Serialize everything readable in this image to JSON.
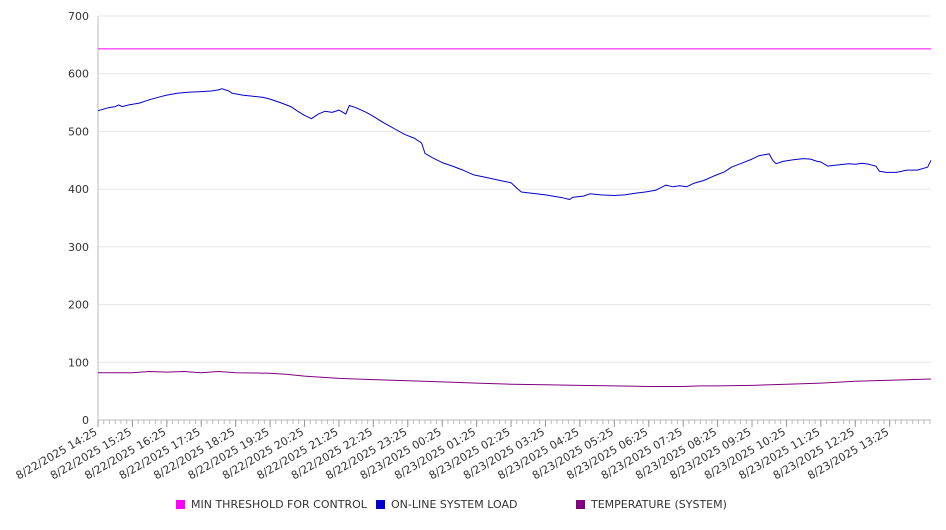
{
  "chart_data": {
    "type": "line",
    "title": "",
    "xlabel": "",
    "ylabel": "",
    "ylim": [
      0,
      700
    ],
    "yticks": [
      0,
      100,
      200,
      300,
      400,
      500,
      600,
      700
    ],
    "grid": true,
    "legend_position": "bottom",
    "x_tick_labels": [
      "8/22/2025 14:25",
      "8/22/2025 15:25",
      "8/22/2025 16:25",
      "8/22/2025 17:25",
      "8/22/2025 18:25",
      "8/22/2025 19:25",
      "8/22/2025 20:25",
      "8/22/2025 21:25",
      "8/22/2025 22:25",
      "8/22/2025 23:25",
      "8/23/2025 00:25",
      "8/23/2025 01:25",
      "8/23/2025 02:25",
      "8/23/2025 03:25",
      "8/23/2025 04:25",
      "8/23/2025 05:25",
      "8/23/2025 06:25",
      "8/23/2025 07:25",
      "8/23/2025 08:25",
      "8/23/2025 09:25",
      "8/23/2025 10:25",
      "8/23/2025 11:25",
      "8/23/2025 12:25",
      "8/23/2025 13:25"
    ],
    "x_range_hours": [
      0,
      24.2
    ],
    "series": [
      {
        "name": "MIN THRESHOLD FOR CONTROL",
        "color": "#ff00ff",
        "points": [
          [
            0,
            643
          ],
          [
            24.2,
            643
          ]
        ]
      },
      {
        "name": "ON-LINE SYSTEM LOAD",
        "color": "#0000cc",
        "points": [
          [
            0,
            536
          ],
          [
            0.3,
            541
          ],
          [
            0.5,
            543
          ],
          [
            0.6,
            546
          ],
          [
            0.7,
            543
          ],
          [
            0.9,
            546
          ],
          [
            1.2,
            549
          ],
          [
            1.5,
            555
          ],
          [
            1.8,
            560
          ],
          [
            2.0,
            563
          ],
          [
            2.3,
            566
          ],
          [
            2.6,
            568
          ],
          [
            3.0,
            569
          ],
          [
            3.3,
            570
          ],
          [
            3.5,
            572
          ],
          [
            3.6,
            574
          ],
          [
            3.8,
            570
          ],
          [
            3.9,
            566
          ],
          [
            4.2,
            563
          ],
          [
            4.5,
            561
          ],
          [
            4.8,
            559
          ],
          [
            5.0,
            556
          ],
          [
            5.3,
            550
          ],
          [
            5.6,
            543
          ],
          [
            5.8,
            535
          ],
          [
            6.0,
            528
          ],
          [
            6.2,
            522
          ],
          [
            6.4,
            530
          ],
          [
            6.6,
            535
          ],
          [
            6.8,
            533
          ],
          [
            7.0,
            537
          ],
          [
            7.2,
            530
          ],
          [
            7.3,
            545
          ],
          [
            7.5,
            541
          ],
          [
            7.8,
            533
          ],
          [
            8.0,
            526
          ],
          [
            8.3,
            515
          ],
          [
            8.6,
            505
          ],
          [
            8.9,
            495
          ],
          [
            9.2,
            488
          ],
          [
            9.4,
            480
          ],
          [
            9.5,
            462
          ],
          [
            9.7,
            455
          ],
          [
            10.0,
            446
          ],
          [
            10.3,
            440
          ],
          [
            10.6,
            433
          ],
          [
            10.9,
            425
          ],
          [
            11.3,
            420
          ],
          [
            11.6,
            416
          ],
          [
            12.0,
            411
          ],
          [
            12.2,
            400
          ],
          [
            12.3,
            395
          ],
          [
            12.6,
            393
          ],
          [
            13.0,
            390
          ],
          [
            13.3,
            387
          ],
          [
            13.5,
            385
          ],
          [
            13.7,
            382
          ],
          [
            13.8,
            386
          ],
          [
            14.1,
            388
          ],
          [
            14.3,
            392
          ],
          [
            14.6,
            390
          ],
          [
            15.0,
            389
          ],
          [
            15.3,
            390
          ],
          [
            15.6,
            393
          ],
          [
            15.9,
            395
          ],
          [
            16.2,
            398
          ],
          [
            16.4,
            404
          ],
          [
            16.5,
            407
          ],
          [
            16.7,
            404
          ],
          [
            16.9,
            406
          ],
          [
            17.1,
            404
          ],
          [
            17.3,
            410
          ],
          [
            17.6,
            415
          ],
          [
            17.9,
            423
          ],
          [
            18.2,
            430
          ],
          [
            18.4,
            438
          ],
          [
            18.7,
            445
          ],
          [
            19.0,
            452
          ],
          [
            19.2,
            458
          ],
          [
            19.4,
            460
          ],
          [
            19.5,
            461
          ],
          [
            19.6,
            450
          ],
          [
            19.7,
            444
          ],
          [
            19.9,
            448
          ],
          [
            20.2,
            451
          ],
          [
            20.5,
            453
          ],
          [
            20.7,
            452
          ],
          [
            20.9,
            448
          ],
          [
            21.0,
            447
          ],
          [
            21.2,
            440
          ],
          [
            21.5,
            442
          ],
          [
            21.8,
            444
          ],
          [
            22.0,
            443
          ],
          [
            22.2,
            445
          ],
          [
            22.4,
            443
          ],
          [
            22.6,
            440
          ],
          [
            22.7,
            431
          ],
          [
            22.9,
            429
          ],
          [
            23.2,
            429
          ],
          [
            23.5,
            433
          ],
          [
            23.8,
            433
          ],
          [
            24.1,
            438
          ],
          [
            24.2,
            450
          ]
        ]
      },
      {
        "name": "TEMPERATURE (SYSTEM)",
        "color": "#800080",
        "points": [
          [
            0,
            82
          ],
          [
            1.0,
            82
          ],
          [
            1.5,
            84
          ],
          [
            2.0,
            83
          ],
          [
            2.5,
            84
          ],
          [
            3.0,
            82
          ],
          [
            3.5,
            84
          ],
          [
            4.0,
            82
          ],
          [
            5.0,
            81
          ],
          [
            5.5,
            79
          ],
          [
            6.0,
            76
          ],
          [
            6.5,
            74
          ],
          [
            7.0,
            72
          ],
          [
            8.0,
            70
          ],
          [
            9.0,
            68
          ],
          [
            10.0,
            66
          ],
          [
            11.0,
            64
          ],
          [
            12.0,
            62
          ],
          [
            13.0,
            61
          ],
          [
            14.0,
            60
          ],
          [
            15.0,
            59
          ],
          [
            16.0,
            58
          ],
          [
            17.0,
            58
          ],
          [
            17.5,
            59
          ],
          [
            18.0,
            59
          ],
          [
            19.0,
            60
          ],
          [
            20.0,
            62
          ],
          [
            21.0,
            64
          ],
          [
            22.0,
            67
          ],
          [
            23.0,
            69
          ],
          [
            24.2,
            71
          ]
        ]
      }
    ]
  }
}
